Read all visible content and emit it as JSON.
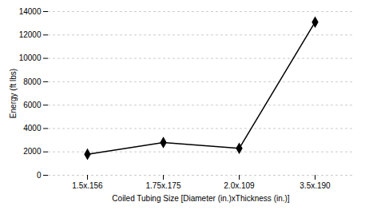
{
  "chart_data": {
    "type": "line",
    "categories": [
      "1.5x.156",
      "1.75x.175",
      "2.0x.109",
      "3.5x.190"
    ],
    "values": [
      1800,
      2800,
      2300,
      13100
    ],
    "color": "#000000",
    "marker": "diamond",
    "xlabel": "Coiled Tubing Size [Diameter (in.)xThickness (in.)]",
    "ylabel": "Energy (ft lbs)",
    "ylim": [
      0,
      14000
    ],
    "yticks": [
      0,
      2000,
      4000,
      6000,
      8000,
      10000,
      12000,
      14000
    ],
    "grid": true
  }
}
